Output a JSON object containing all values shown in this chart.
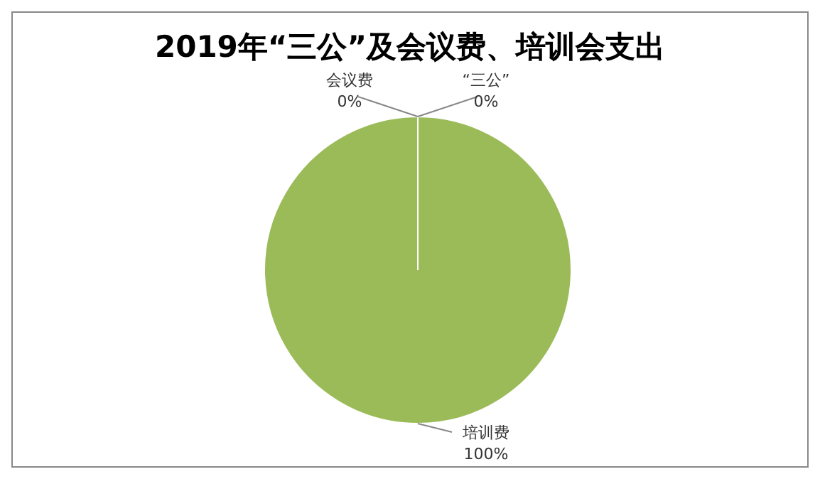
{
  "chart_data": {
    "type": "pie",
    "title": "2019年“三公”及会议费、培训会支出",
    "categories": [
      "“三公”",
      "会议费",
      "培训费"
    ],
    "values": [
      0,
      0,
      100
    ],
    "colors": [
      "#4f81bd",
      "#c0504d",
      "#9bbb59"
    ],
    "value_labels": [
      "0%",
      "0%",
      "100%"
    ]
  }
}
